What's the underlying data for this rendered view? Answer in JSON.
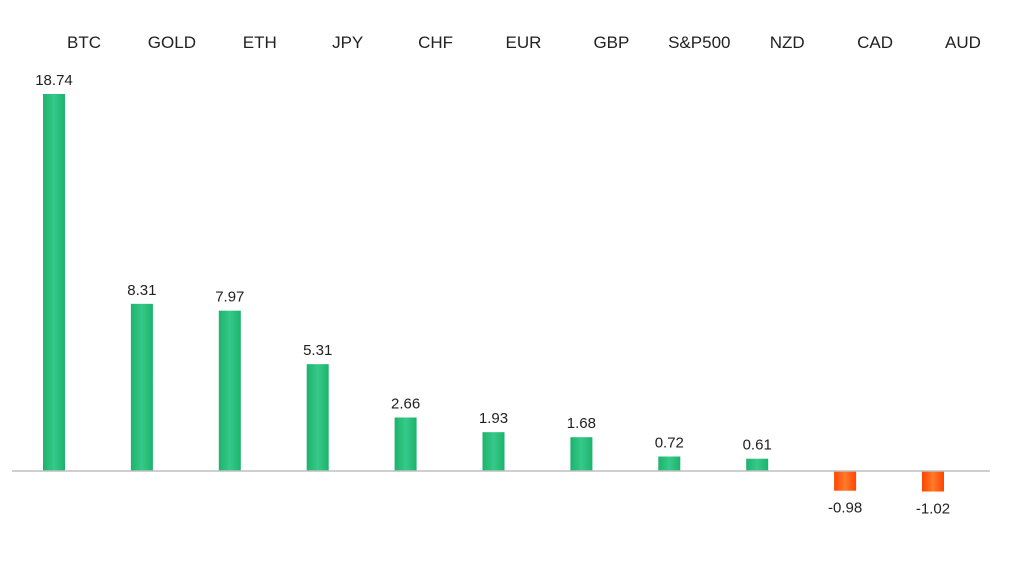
{
  "chart_data": {
    "type": "bar",
    "title": "",
    "xlabel": "",
    "ylabel": "",
    "categories": [
      "BTC",
      "GOLD",
      "ETH",
      "JPY",
      "CHF",
      "EUR",
      "GBP",
      "S&P500",
      "NZD",
      "CAD",
      "AUD"
    ],
    "values": [
      18.74,
      8.31,
      7.97,
      5.31,
      2.66,
      1.93,
      1.68,
      0.72,
      0.61,
      -0.98,
      -1.02
    ],
    "value_labels": [
      "18.74",
      "8.31",
      "7.97",
      "5.31",
      "2.66",
      "1.93",
      "1.68",
      "0.72",
      "0.61",
      "-0.98",
      "-1.02"
    ],
    "category_labels_position": "top",
    "grid": false,
    "legend": "none",
    "colors": {
      "positive": "#1db36b",
      "positive_light": "#36c98a",
      "negative": "#ff4500",
      "negative_light": "#ff7a2a",
      "axis": "#bfbfbf"
    }
  }
}
